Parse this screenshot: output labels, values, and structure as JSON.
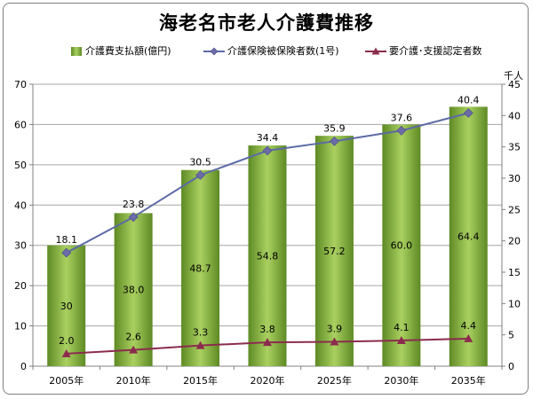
{
  "title": "海老名市老人介護費推移",
  "legend": {
    "bar": "介護費支払額(億円)",
    "line1": "介護保険被保険者数(1号)",
    "line2": "要介護･支援認定者数"
  },
  "y2_unit": "千人",
  "colors": {
    "bar_dark": "#5e8a24",
    "bar_light": "#a9d060",
    "line1": "#5b6aa6",
    "line1_marker": "#6c6ca8",
    "line2": "#8b2c4e",
    "grid": "#a6a6a6",
    "frame": "#7f7f7f"
  },
  "chart_data": {
    "type": "bar",
    "categories": [
      "2005年",
      "2010年",
      "2015年",
      "2020年",
      "2025年",
      "2030年",
      "2035年"
    ],
    "ylim": [
      0,
      70
    ],
    "y_ticks": [
      "0",
      "10",
      "20",
      "30",
      "40",
      "50",
      "60",
      "70"
    ],
    "y2lim": [
      0,
      45
    ],
    "y2_ticks": [
      "0",
      "5",
      "10",
      "15",
      "20",
      "25",
      "30",
      "35",
      "40",
      "45"
    ],
    "grid": true,
    "legend_position": "top",
    "series": [
      {
        "name": "介護費支払額(億円)",
        "type": "bar",
        "axis": "left",
        "values": [
          30,
          38.0,
          48.7,
          54.8,
          57.2,
          60.0,
          64.4
        ],
        "labels": [
          "30",
          "38.0",
          "48.7",
          "54.8",
          "57.2",
          "60.0",
          "64.4"
        ]
      },
      {
        "name": "介護保険被保険者数(1号)",
        "type": "line",
        "axis": "right",
        "marker": "diamond",
        "values": [
          18.1,
          23.8,
          30.5,
          34.4,
          35.9,
          37.6,
          40.4
        ],
        "labels": [
          "18.1",
          "23.8",
          "30.5",
          "34.4",
          "35.9",
          "37.6",
          "40.4"
        ]
      },
      {
        "name": "要介護･支援認定者数",
        "type": "line",
        "axis": "right",
        "marker": "triangle",
        "values": [
          2.0,
          2.6,
          3.3,
          3.8,
          3.9,
          4.1,
          4.4
        ],
        "labels": [
          "2.0",
          "2.6",
          "3.3",
          "3.8",
          "3.9",
          "4.1",
          "4.4"
        ]
      }
    ]
  }
}
